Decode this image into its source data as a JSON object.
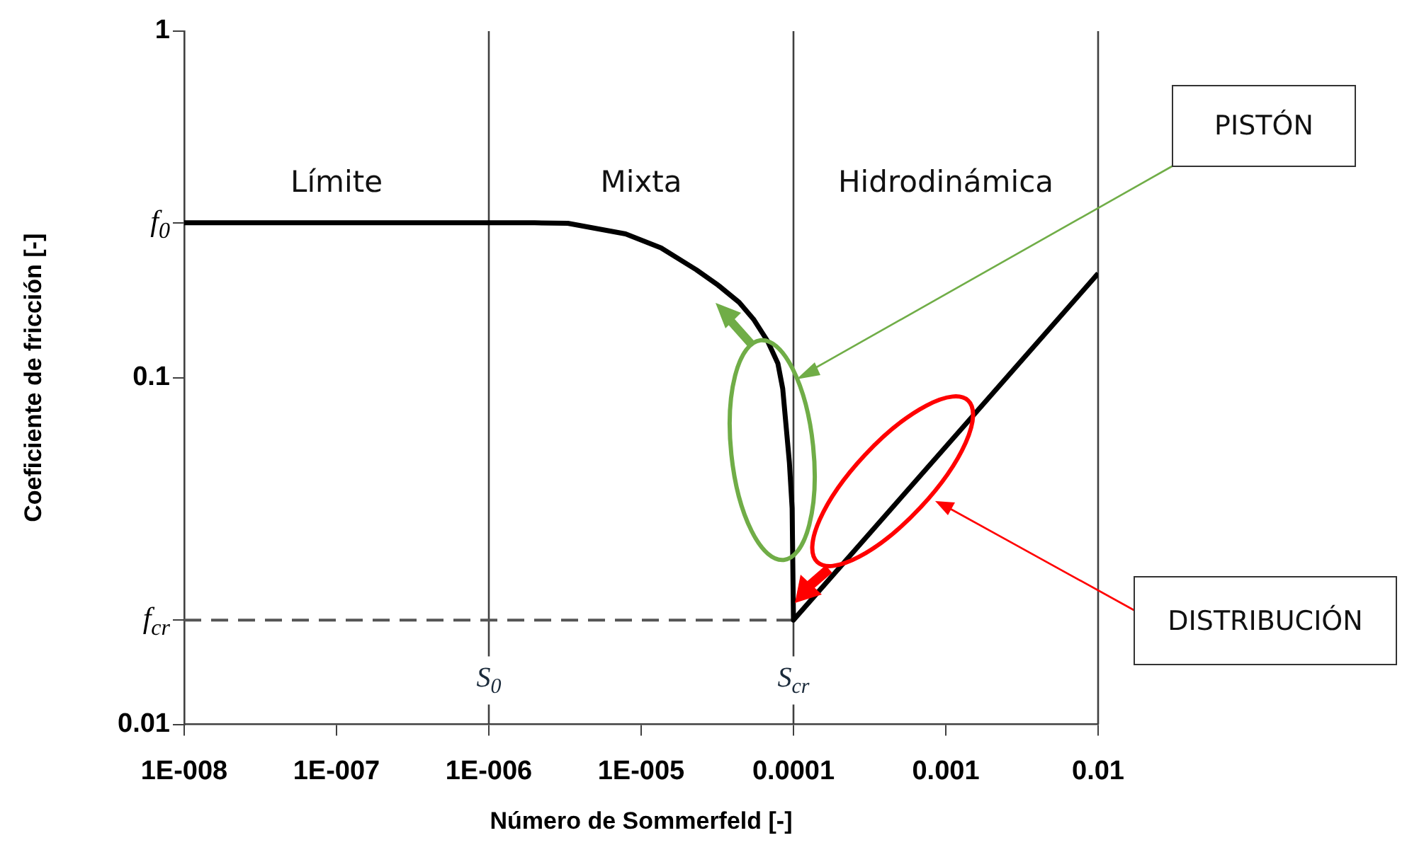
{
  "chart_data": {
    "type": "line",
    "xlabel": "Número de Sommerfeld [-]",
    "ylabel": "Coeficiente de fricción [-]",
    "x": [
      1e-08,
      1e-07,
      1e-06,
      2e-06,
      3.3e-06,
      7.9e-06,
      1.35e-05,
      2.3e-05,
      3.2e-05,
      4.4e-05,
      5.5e-05,
      6.8e-05,
      7.9e-05,
      8.5e-05,
      9.4e-05,
      9.8e-05,
      0.0001,
      0.01
    ],
    "series": [
      {
        "color": "#000000",
        "values": [
          0.28,
          0.28,
          0.28,
          0.28,
          0.279,
          0.26,
          0.237,
          0.205,
          0.185,
          0.165,
          0.147,
          0.127,
          0.11,
          0.093,
          0.057,
          0.042,
          0.02,
          0.2
        ]
      }
    ],
    "log": "xy",
    "xlim": [
      1e-08,
      0.01
    ],
    "ylim": [
      0.01,
      1
    ],
    "xticks": [
      {
        "value": 1e-08,
        "label": "1E-008"
      },
      {
        "value": 1e-07,
        "label": "1E-007"
      },
      {
        "value": 1e-06,
        "label": "1E-006"
      },
      {
        "value": 1e-05,
        "label": "1E-005"
      },
      {
        "value": 0.0001,
        "label": "0.0001"
      },
      {
        "value": 0.001,
        "label": "0.001"
      },
      {
        "value": 0.01,
        "label": "0.01"
      }
    ],
    "yticks": [
      0.01,
      {
        "value": 0.02,
        "label": "f$_{cr}$"
      },
      0.1,
      {
        "value": 0.28,
        "label": "f$_{0}$"
      },
      1
    ],
    "ref_lines": [
      {
        "axis": "x",
        "value": 1e-06,
        "label": "S$_{0}$",
        "color": "#404040"
      },
      {
        "axis": "x",
        "value": 0.0001,
        "label": "S$_{cr}$",
        "color": "#404040"
      },
      {
        "axis": "y",
        "value": 0.02,
        "color": "#555555",
        "line_style": "dashed"
      }
    ],
    "annotations": [
      "Límite",
      "Mixta",
      "Hidrodinámica",
      "PISTÓN",
      "DISTRIBUCIÓN"
    ],
    "grid": false,
    "legend": false,
    "marker": "none",
    "line_style": "solid"
  }
}
